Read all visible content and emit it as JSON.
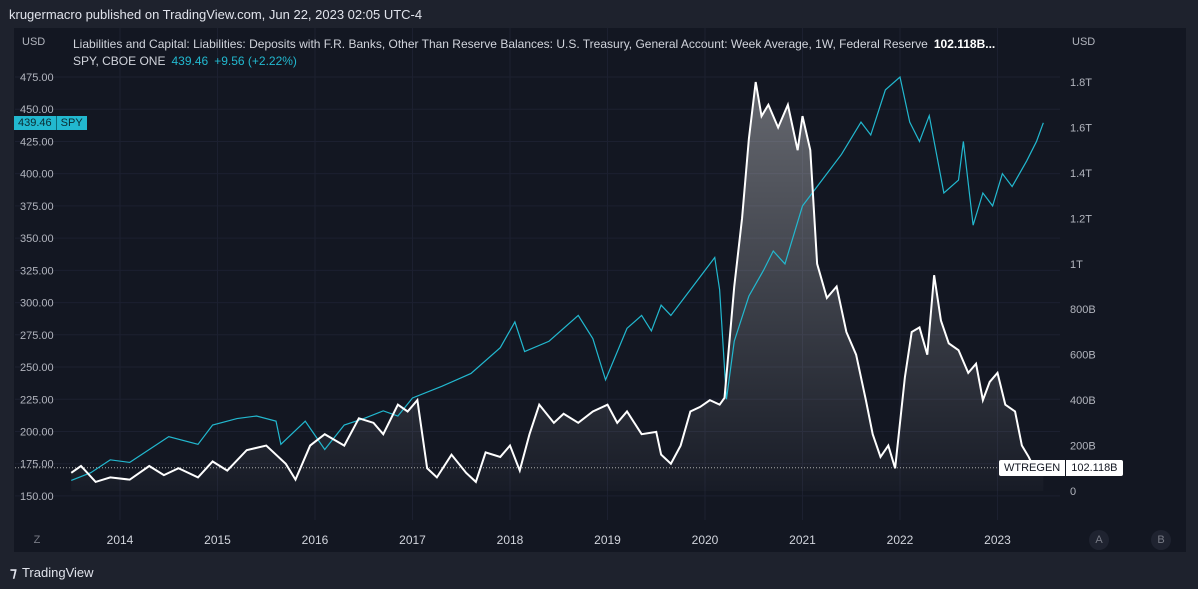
{
  "header": {
    "published": "krugermacro published on TradingView.com, Jun 22, 2023 02:05 UTC-4"
  },
  "legend": {
    "series1": "Liabilities and Capital: Liabilities: Deposits with F.R. Banks, Other Than Reserve Balances: U.S. Treasury, General Account: Week Average, 1W, Federal Reserve",
    "series1_value": "102.118B...",
    "series2": "SPY, CBOE ONE",
    "series2_value": "439.46",
    "series2_change": "+9.56 (+2.22%)"
  },
  "footer": {
    "brand": "TradingView",
    "left_btn": "Z",
    "btn_a": "A",
    "btn_b": "B"
  },
  "colors": {
    "spy": "#22b8cf",
    "tga": "#ffffff",
    "background": "#131722"
  },
  "chart_data": {
    "type": "line",
    "left_axis": {
      "unit": "USD",
      "ticks": [
        "475.00",
        "450.00",
        "425.00",
        "400.00",
        "375.00",
        "350.00",
        "325.00",
        "300.00",
        "275.00",
        "250.00",
        "225.00",
        "200.00",
        "175.00",
        "150.00"
      ],
      "range": [
        150,
        475
      ]
    },
    "right_axis": {
      "unit": "USD",
      "ticks": [
        "1.8T",
        "1.6T",
        "1.4T",
        "1.2T",
        "1T",
        "800B",
        "600B",
        "400B",
        "200B",
        "0"
      ],
      "range_billions": [
        0,
        1800
      ]
    },
    "x_ticks": [
      "2014",
      "2015",
      "2016",
      "2017",
      "2018",
      "2019",
      "2020",
      "2021",
      "2022",
      "2023"
    ],
    "grid": true,
    "series": [
      {
        "name": "SPY",
        "axis": "left",
        "last_label": "439.46",
        "label_tag": "SPY",
        "points": [
          [
            2013.5,
            162
          ],
          [
            2013.7,
            168
          ],
          [
            2013.9,
            178
          ],
          [
            2014.1,
            176
          ],
          [
            2014.3,
            186
          ],
          [
            2014.5,
            196
          ],
          [
            2014.8,
            190
          ],
          [
            2014.95,
            205
          ],
          [
            2015.2,
            210
          ],
          [
            2015.4,
            212
          ],
          [
            2015.6,
            208
          ],
          [
            2015.65,
            190
          ],
          [
            2015.9,
            208
          ],
          [
            2016.1,
            186
          ],
          [
            2016.3,
            205
          ],
          [
            2016.5,
            210
          ],
          [
            2016.7,
            216
          ],
          [
            2016.85,
            212
          ],
          [
            2017.0,
            226
          ],
          [
            2017.3,
            235
          ],
          [
            2017.6,
            245
          ],
          [
            2017.9,
            265
          ],
          [
            2018.05,
            285
          ],
          [
            2018.15,
            262
          ],
          [
            2018.4,
            270
          ],
          [
            2018.7,
            290
          ],
          [
            2018.85,
            272
          ],
          [
            2018.98,
            240
          ],
          [
            2019.2,
            280
          ],
          [
            2019.35,
            290
          ],
          [
            2019.45,
            278
          ],
          [
            2019.55,
            298
          ],
          [
            2019.65,
            290
          ],
          [
            2019.9,
            315
          ],
          [
            2020.1,
            335
          ],
          [
            2020.15,
            310
          ],
          [
            2020.22,
            225
          ],
          [
            2020.3,
            270
          ],
          [
            2020.45,
            305
          ],
          [
            2020.6,
            325
          ],
          [
            2020.7,
            340
          ],
          [
            2020.82,
            330
          ],
          [
            2021.0,
            375
          ],
          [
            2021.2,
            395
          ],
          [
            2021.4,
            415
          ],
          [
            2021.6,
            440
          ],
          [
            2021.7,
            430
          ],
          [
            2021.85,
            465
          ],
          [
            2022.0,
            475
          ],
          [
            2022.1,
            440
          ],
          [
            2022.2,
            425
          ],
          [
            2022.3,
            445
          ],
          [
            2022.45,
            385
          ],
          [
            2022.6,
            395
          ],
          [
            2022.65,
            425
          ],
          [
            2022.75,
            360
          ],
          [
            2022.85,
            385
          ],
          [
            2022.95,
            375
          ],
          [
            2023.05,
            400
          ],
          [
            2023.15,
            390
          ],
          [
            2023.3,
            410
          ],
          [
            2023.4,
            425
          ],
          [
            2023.47,
            439.46
          ]
        ]
      },
      {
        "name": "WTREGEN",
        "axis": "right",
        "last_label": "102.118B",
        "points": [
          [
            2013.5,
            80
          ],
          [
            2013.6,
            110
          ],
          [
            2013.75,
            40
          ],
          [
            2013.9,
            60
          ],
          [
            2014.1,
            50
          ],
          [
            2014.3,
            110
          ],
          [
            2014.45,
            70
          ],
          [
            2014.6,
            100
          ],
          [
            2014.8,
            60
          ],
          [
            2014.95,
            130
          ],
          [
            2015.1,
            90
          ],
          [
            2015.3,
            180
          ],
          [
            2015.5,
            200
          ],
          [
            2015.7,
            120
          ],
          [
            2015.8,
            50
          ],
          [
            2015.95,
            200
          ],
          [
            2016.1,
            250
          ],
          [
            2016.3,
            200
          ],
          [
            2016.45,
            320
          ],
          [
            2016.6,
            300
          ],
          [
            2016.7,
            250
          ],
          [
            2016.85,
            380
          ],
          [
            2016.95,
            350
          ],
          [
            2017.05,
            400
          ],
          [
            2017.15,
            100
          ],
          [
            2017.25,
            60
          ],
          [
            2017.4,
            160
          ],
          [
            2017.55,
            80
          ],
          [
            2017.65,
            40
          ],
          [
            2017.75,
            170
          ],
          [
            2017.9,
            150
          ],
          [
            2018.0,
            200
          ],
          [
            2018.1,
            90
          ],
          [
            2018.2,
            250
          ],
          [
            2018.3,
            380
          ],
          [
            2018.45,
            300
          ],
          [
            2018.55,
            340
          ],
          [
            2018.7,
            300
          ],
          [
            2018.85,
            350
          ],
          [
            2019.0,
            380
          ],
          [
            2019.1,
            300
          ],
          [
            2019.2,
            350
          ],
          [
            2019.35,
            250
          ],
          [
            2019.5,
            260
          ],
          [
            2019.55,
            160
          ],
          [
            2019.65,
            120
          ],
          [
            2019.75,
            200
          ],
          [
            2019.85,
            350
          ],
          [
            2019.95,
            370
          ],
          [
            2020.05,
            400
          ],
          [
            2020.15,
            380
          ],
          [
            2020.2,
            410
          ],
          [
            2020.3,
            900
          ],
          [
            2020.38,
            1200
          ],
          [
            2020.45,
            1550
          ],
          [
            2020.52,
            1800
          ],
          [
            2020.58,
            1650
          ],
          [
            2020.65,
            1700
          ],
          [
            2020.75,
            1600
          ],
          [
            2020.85,
            1700
          ],
          [
            2020.95,
            1500
          ],
          [
            2021.0,
            1650
          ],
          [
            2021.08,
            1500
          ],
          [
            2021.15,
            1000
          ],
          [
            2021.25,
            850
          ],
          [
            2021.35,
            900
          ],
          [
            2021.45,
            700
          ],
          [
            2021.55,
            600
          ],
          [
            2021.65,
            400
          ],
          [
            2021.72,
            250
          ],
          [
            2021.8,
            150
          ],
          [
            2021.88,
            200
          ],
          [
            2021.95,
            100
          ],
          [
            2022.05,
            500
          ],
          [
            2022.12,
            700
          ],
          [
            2022.2,
            720
          ],
          [
            2022.28,
            600
          ],
          [
            2022.35,
            950
          ],
          [
            2022.42,
            750
          ],
          [
            2022.5,
            650
          ],
          [
            2022.6,
            620
          ],
          [
            2022.7,
            520
          ],
          [
            2022.78,
            560
          ],
          [
            2022.85,
            400
          ],
          [
            2022.92,
            480
          ],
          [
            2023.0,
            520
          ],
          [
            2023.08,
            380
          ],
          [
            2023.18,
            350
          ],
          [
            2023.25,
            200
          ],
          [
            2023.32,
            150
          ],
          [
            2023.4,
            80
          ],
          [
            2023.47,
            102.118
          ]
        ]
      }
    ]
  }
}
